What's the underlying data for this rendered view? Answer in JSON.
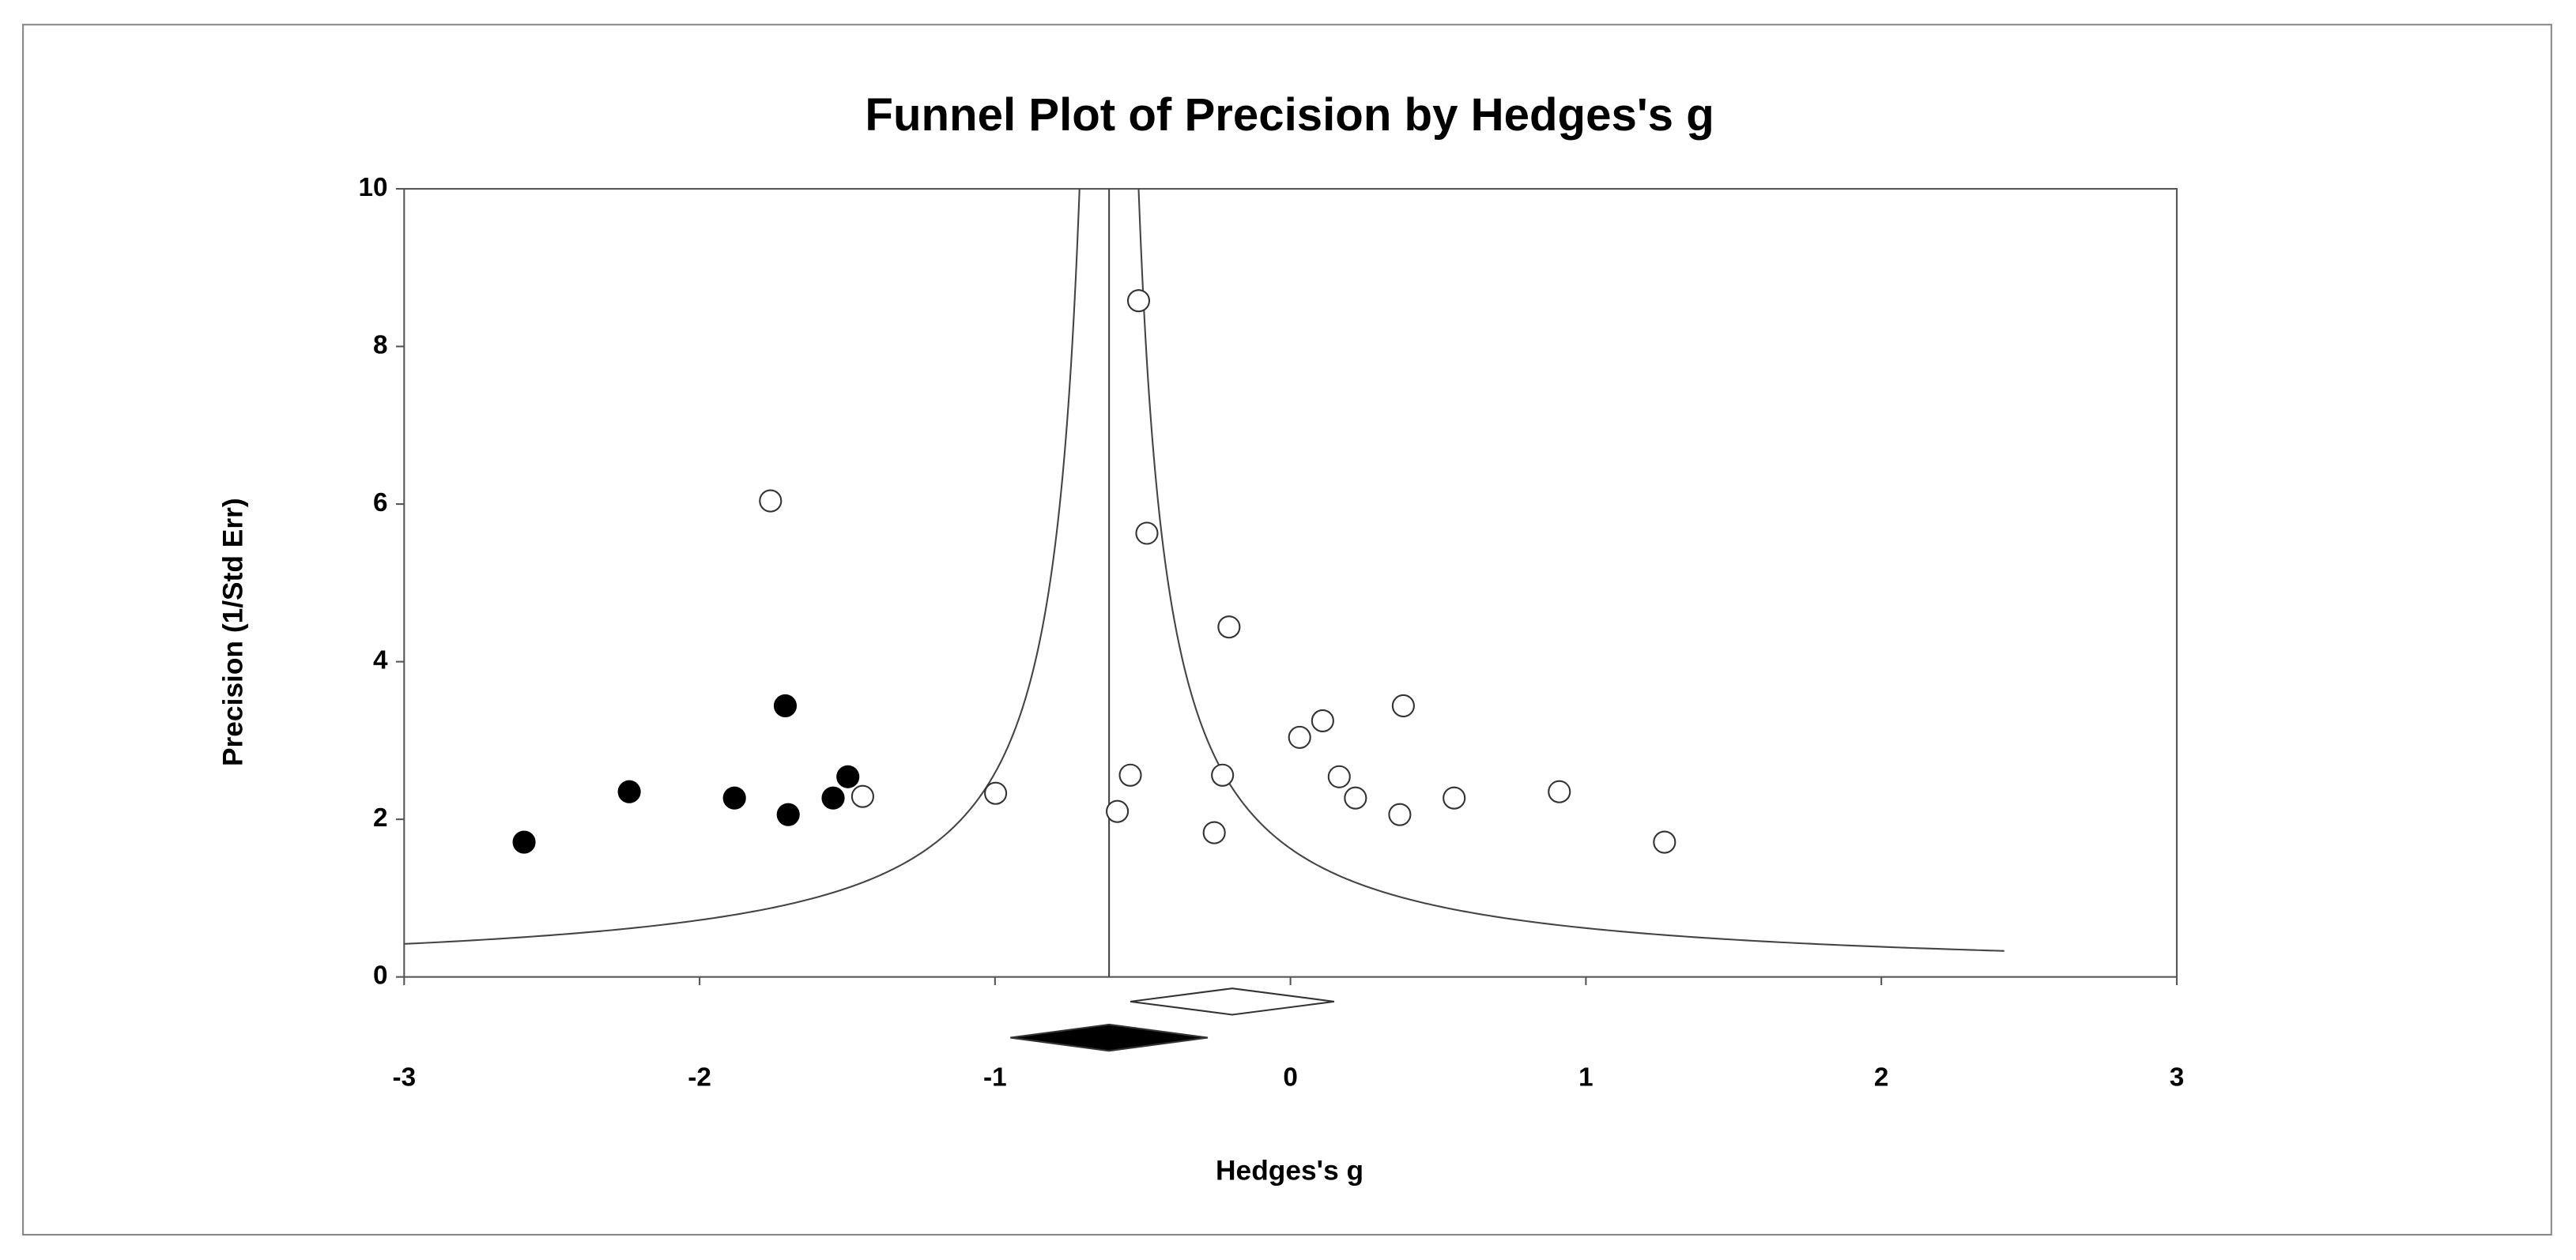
{
  "chart_data": {
    "type": "scatter",
    "title": "Funnel Plot of Precision by Hedges's g",
    "xlabel": "Hedges's g",
    "ylabel": "Precision (1/Std Err)",
    "xlim": [
      -3,
      3
    ],
    "ylim": [
      0,
      10
    ],
    "xticks": [
      -3,
      -2,
      -1,
      0,
      1,
      2,
      3
    ],
    "yticks": [
      0,
      2,
      4,
      6,
      8,
      10
    ],
    "grid": false,
    "series": [
      {
        "color": "#ffffff",
        "stroke": "#333333",
        "x": [
          -0.514,
          -1.76,
          -0.486,
          -0.208,
          0.382,
          0.109,
          0.031,
          -0.542,
          -0.23,
          0.165,
          0.22,
          0.554,
          0.91,
          -1.448,
          -0.998,
          -0.586,
          0.37,
          -0.258,
          1.266
        ],
        "values": [
          8.58,
          6.04,
          5.63,
          4.44,
          3.44,
          3.25,
          3.04,
          2.56,
          2.56,
          2.54,
          2.27,
          2.27,
          2.35,
          2.29,
          2.33,
          2.1,
          2.06,
          1.83,
          1.71
        ]
      },
      {
        "color": "#000000",
        "stroke": "#000000",
        "x": [
          -1.71,
          -1.498,
          -1.548,
          -1.882,
          -1.7,
          -2.238,
          -2.594
        ],
        "values": [
          3.44,
          2.54,
          2.27,
          2.27,
          2.06,
          2.35,
          1.71
        ]
      }
    ],
    "observed_estimate": {
      "center": -0.197,
      "ci": [
        -0.542,
        0.148
      ],
      "color": "#ffffff"
    },
    "adjusted_estimate": {
      "center": -0.614,
      "ci": [
        -0.948,
        -0.28
      ],
      "color": "#000000"
    },
    "funnel": {
      "se_multiplier": 1,
      "min_precision": 0.33
    }
  }
}
